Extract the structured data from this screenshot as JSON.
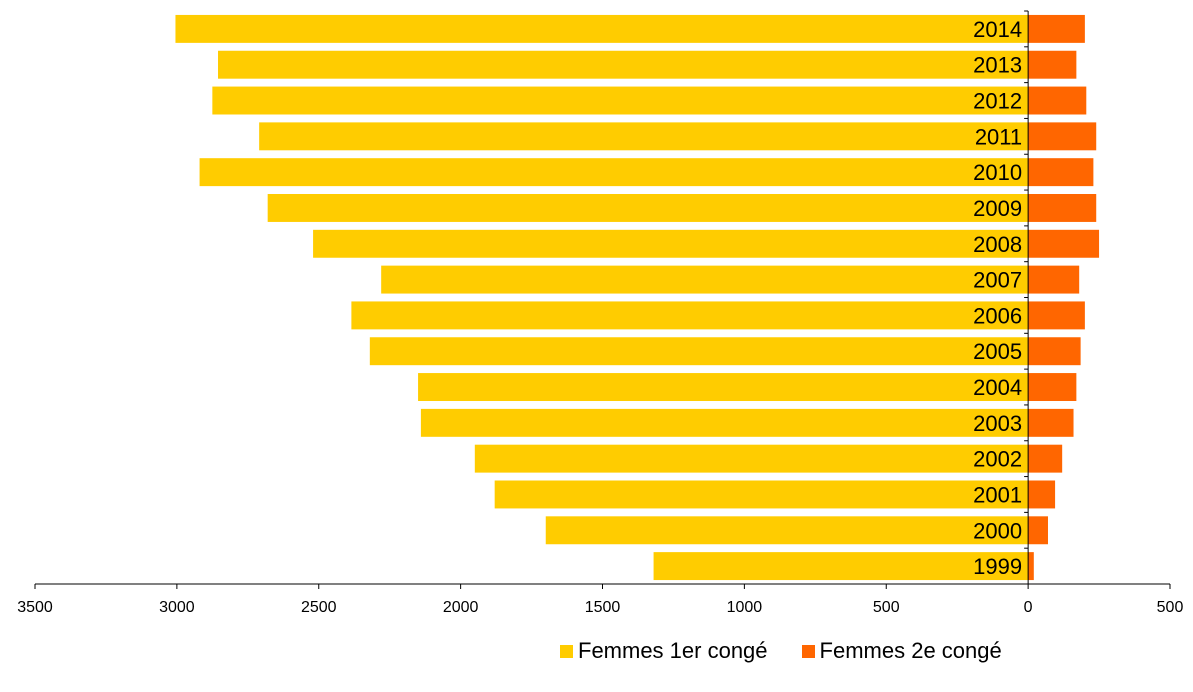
{
  "chart_data": {
    "type": "bar",
    "orientation": "horizontal",
    "title": "",
    "xlabel": "",
    "ylabel": "",
    "xlim": [
      -3500,
      500
    ],
    "x_tick_labels": [
      "3500",
      "3000",
      "2500",
      "2000",
      "1500",
      "1000",
      "500",
      "0",
      "500"
    ],
    "categories": [
      "2014",
      "2013",
      "2012",
      "2011",
      "2010",
      "2009",
      "2008",
      "2007",
      "2006",
      "2005",
      "2004",
      "2003",
      "2002",
      "2001",
      "2000",
      "1999"
    ],
    "series": [
      {
        "name": "Femmes 1er congé",
        "color": "#FFCC00",
        "direction": "left",
        "values": [
          3005,
          2855,
          2875,
          2710,
          2920,
          2680,
          2520,
          2280,
          2385,
          2320,
          2150,
          2140,
          1950,
          1880,
          1700,
          1320
        ]
      },
      {
        "name": "Femmes 2e congé",
        "color": "#FF6600",
        "direction": "right",
        "values": [
          200,
          170,
          205,
          240,
          230,
          240,
          250,
          180,
          200,
          185,
          170,
          160,
          120,
          95,
          70,
          20
        ]
      }
    ],
    "grid": false,
    "legend_position": "bottom-right"
  }
}
